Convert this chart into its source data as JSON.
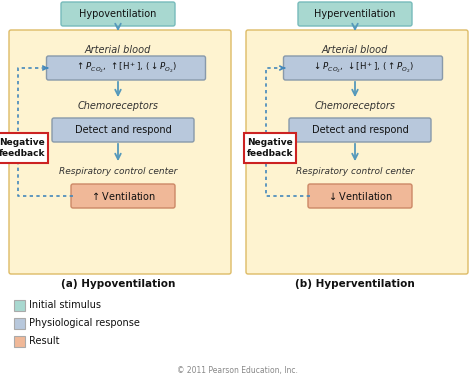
{
  "background_color": "#ffffff",
  "panel_bg": "#fef3d0",
  "teal_box_color": "#a8d8d0",
  "blue_box_color": "#b8c8dc",
  "salmon_box_color": "#f0b898",
  "neg_feedback_border": "#cc2222",
  "arrow_color": "#5599bb",
  "dotted_color": "#4488bb",
  "left_title": "Hypoventilation",
  "right_title": "Hyperventilation",
  "left_arterial_label": "Arterial blood",
  "left_chemo_label": "Chemoreceptors",
  "left_detect": "Detect and respond",
  "left_resp_label": "Respiratory control center",
  "right_arterial_label": "Arterial blood",
  "right_chemo_label": "Chemoreceptors",
  "right_detect": "Detect and respond",
  "right_resp_label": "Respiratory control center",
  "neg_feedback_text": "Negative\nfeedback",
  "caption_left": "(a) Hypoventilation",
  "caption_right": "(b) Hyperventilation",
  "legend_items": [
    {
      "label": "Initial stimulus",
      "color": "#a8d8d0"
    },
    {
      "label": "Physiological response",
      "color": "#b8c8dc"
    },
    {
      "label": "Result",
      "color": "#f0b898"
    }
  ],
  "copyright": "© 2011 Pearson Education, Inc."
}
